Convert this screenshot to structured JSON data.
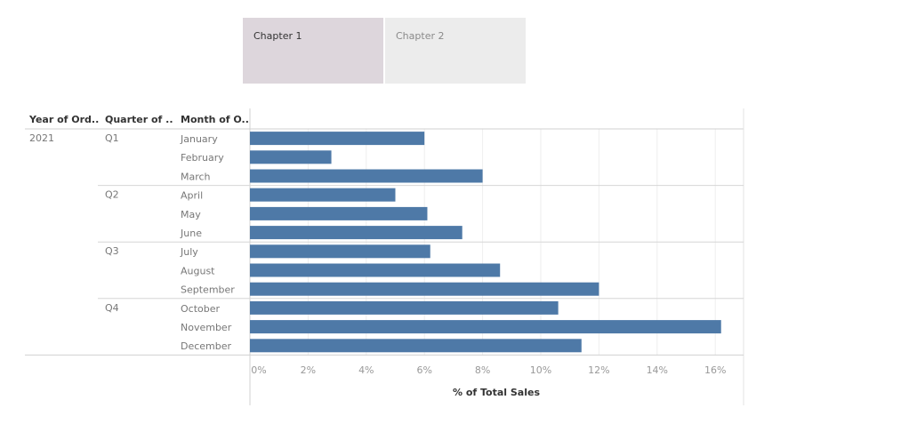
{
  "tabs": [
    {
      "label": "Chapter 1",
      "active": true
    },
    {
      "label": "Chapter 2",
      "active": false
    }
  ],
  "headers": {
    "year": "Year of Ord..",
    "quarter": "Quarter of ..",
    "month": "Month of O.."
  },
  "chart_data": {
    "type": "bar",
    "orientation": "horizontal",
    "xlabel": "% of Total Sales",
    "xlim": [
      0,
      16.5
    ],
    "x_ticks": [
      "0%",
      "2%",
      "4%",
      "6%",
      "8%",
      "10%",
      "12%",
      "14%",
      "16%"
    ],
    "grid": true,
    "bar_color": "#4e79a7",
    "year": "2021",
    "quarters": [
      {
        "label": "Q1",
        "months": [
          "January",
          "February",
          "March"
        ],
        "values": [
          6.0,
          2.8,
          8.0
        ]
      },
      {
        "label": "Q2",
        "months": [
          "April",
          "May",
          "June"
        ],
        "values": [
          5.0,
          6.1,
          7.3
        ]
      },
      {
        "label": "Q3",
        "months": [
          "July",
          "August",
          "September"
        ],
        "values": [
          6.2,
          8.6,
          12.0
        ]
      },
      {
        "label": "Q4",
        "months": [
          "October",
          "November",
          "December"
        ],
        "values": [
          10.6,
          16.2,
          11.4
        ]
      }
    ]
  }
}
